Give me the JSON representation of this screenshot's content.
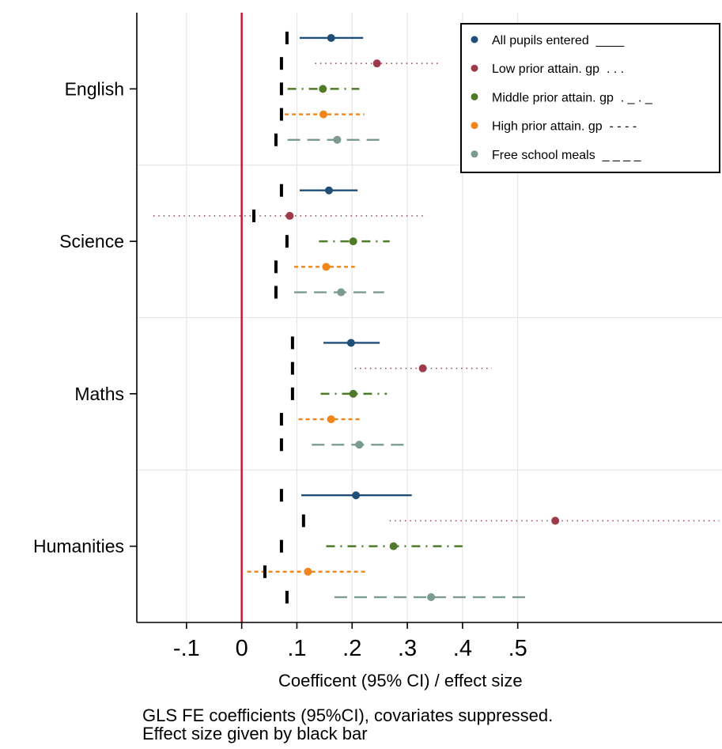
{
  "chart_data": {
    "type": "forest",
    "title": "",
    "xlabel": "Coefficent (95% CI) / effect size",
    "ylabel": "",
    "xlim": [
      -0.19,
      0.87
    ],
    "x_ticks": [
      -0.1,
      0,
      0.1,
      0.2,
      0.3,
      0.4,
      0.5
    ],
    "x_tick_labels": [
      "-.1",
      "0",
      ".1",
      ".2",
      ".3",
      ".4",
      ".5"
    ],
    "reference_line": {
      "x": 0,
      "color": "#c8102e"
    },
    "grid": true,
    "legend_position": "top-right",
    "effect_size_marker": "black bar",
    "categories": [
      "English",
      "Science",
      "Maths",
      "Humanities"
    ],
    "series": [
      {
        "name": "All pupils entered",
        "legend_label": "All pupils entered  ____",
        "color": "#1f4e79",
        "style": "solid",
        "estimate": [
          0.162,
          0.158,
          0.198,
          0.207
        ],
        "ci_low": [
          0.105,
          0.105,
          0.148,
          0.108
        ],
        "ci_high": [
          0.22,
          0.21,
          0.25,
          0.308
        ],
        "effect_size": [
          0.082,
          0.072,
          0.092,
          0.072
        ]
      },
      {
        "name": "Low prior attain. gp",
        "legend_label": "Low prior attain. gp  . . .",
        "color": "#9e3b4a",
        "style": "dotted",
        "estimate": [
          0.245,
          0.087,
          0.328,
          0.568
        ],
        "ci_low": [
          0.133,
          -0.16,
          0.205,
          0.268
        ],
        "ci_high": [
          0.36,
          0.332,
          0.453,
          0.865
        ],
        "effect_size": [
          0.072,
          0.022,
          0.092,
          0.112
        ]
      },
      {
        "name": "Middle prior attain. gp",
        "legend_label": "Middle prior attain. gp  . _ . _",
        "color": "#4f7a28",
        "style": "dashdot",
        "estimate": [
          0.147,
          0.202,
          0.202,
          0.275
        ],
        "ci_low": [
          0.083,
          0.14,
          0.143,
          0.153
        ],
        "ci_high": [
          0.213,
          0.268,
          0.263,
          0.4
        ],
        "effect_size": [
          0.072,
          0.082,
          0.092,
          0.072
        ]
      },
      {
        "name": "High prior attain. gp",
        "legend_label": "High prior attain. gp  - - - -",
        "color": "#f0861b",
        "style": "dashed",
        "estimate": [
          0.148,
          0.153,
          0.162,
          0.12
        ],
        "ci_low": [
          0.078,
          0.095,
          0.103,
          0.01
        ],
        "ci_high": [
          0.222,
          0.205,
          0.215,
          0.225
        ],
        "effect_size": [
          0.072,
          0.062,
          0.072,
          0.042
        ]
      },
      {
        "name": "Free school meals",
        "legend_label": "Free school meals  _ _ _ _",
        "color": "#7a9a92",
        "style": "longdash",
        "estimate": [
          0.173,
          0.18,
          0.213,
          0.343
        ],
        "ci_low": [
          0.083,
          0.095,
          0.127,
          0.168
        ],
        "ci_high": [
          0.262,
          0.258,
          0.3,
          0.518
        ],
        "effect_size": [
          0.062,
          0.062,
          0.072,
          0.082
        ]
      }
    ]
  },
  "caption": {
    "line1": "GLS FE coefficients (95%CI), covariates suppressed.",
    "line2": "Effect size given by black bar"
  }
}
